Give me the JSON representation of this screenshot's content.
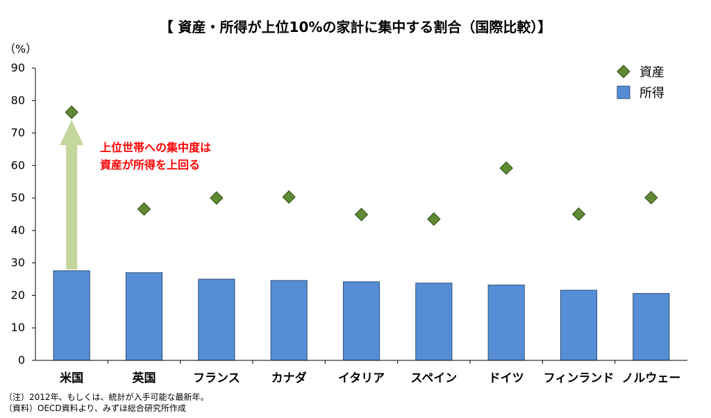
{
  "chart_data": {
    "type": "bar",
    "title": "【 資産・所得が上位10%の家計に集中する割合（国際比較）】",
    "ylabel": "（%）",
    "xlabel": "",
    "ylim": [
      0,
      90
    ],
    "yticks": [
      0,
      10,
      20,
      30,
      40,
      50,
      60,
      70,
      80,
      90
    ],
    "categories": [
      "米国",
      "英国",
      "フランス",
      "カナダ",
      "イタリア",
      "スペイン",
      "ドイツ",
      "フィンランド",
      "ノルウェー"
    ],
    "series": [
      {
        "name": "資産",
        "kind": "scatter",
        "marker": "diamond",
        "color": "#5f8a32",
        "values": [
          76.4,
          46.6,
          50.0,
          50.3,
          44.9,
          43.5,
          59.2,
          45.0,
          50.1
        ]
      },
      {
        "name": "所得",
        "kind": "bar",
        "color": "#558ed5",
        "values": [
          27.6,
          27.0,
          25.0,
          24.6,
          24.2,
          23.8,
          23.2,
          21.6,
          20.6
        ]
      }
    ],
    "legend_position": "top-right",
    "grid": false,
    "annotation": {
      "lines": [
        "上位世帯への集中度は",
        "資産が所得を上回る"
      ],
      "color": "#ff0000",
      "arrow_category": "米国",
      "arrow_from": 28,
      "arrow_to": 74,
      "arrow_color": "#c3d69b"
    }
  },
  "notes": [
    "（注）2012年、もしくは、統計が入手可能な最新年。",
    "（資料）OECD資料より、みずほ総合研究所作成"
  ]
}
